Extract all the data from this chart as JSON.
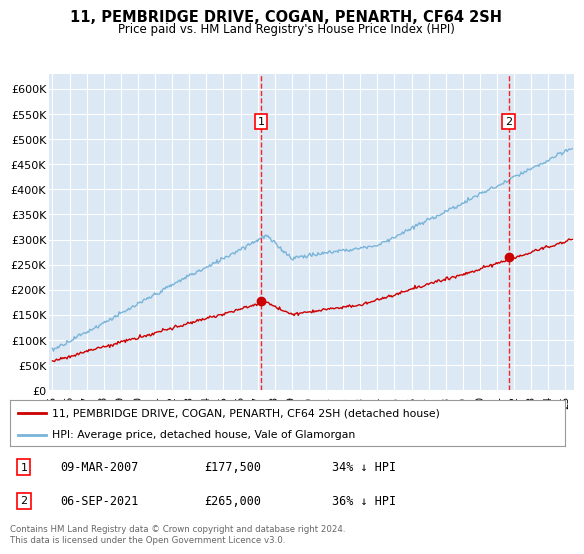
{
  "title": "11, PEMBRIDGE DRIVE, COGAN, PENARTH, CF64 2SH",
  "subtitle": "Price paid vs. HM Land Registry's House Price Index (HPI)",
  "yticks": [
    0,
    50000,
    100000,
    150000,
    200000,
    250000,
    300000,
    350000,
    400000,
    450000,
    500000,
    550000,
    600000
  ],
  "xlim_start": 1994.8,
  "xlim_end": 2025.5,
  "ylim_min": 0,
  "ylim_max": 630000,
  "plot_bg_color": "#dce9f5",
  "grid_color": "#ffffff",
  "line_color_hpi": "#7ab4d8",
  "line_color_price": "#cc0000",
  "purchase1_x": 2007.19,
  "purchase1_y": 177500,
  "purchase1_label": "1",
  "purchase1_date": "09-MAR-2007",
  "purchase1_price": "£177,500",
  "purchase1_hpi": "34% ↓ HPI",
  "purchase2_x": 2021.68,
  "purchase2_y": 265000,
  "purchase2_label": "2",
  "purchase2_date": "06-SEP-2021",
  "purchase2_price": "£265,000",
  "purchase2_hpi": "36% ↓ HPI",
  "legend_line1": "11, PEMBRIDGE DRIVE, COGAN, PENARTH, CF64 2SH (detached house)",
  "legend_line2": "HPI: Average price, detached house, Vale of Glamorgan",
  "footer": "Contains HM Land Registry data © Crown copyright and database right 2024.\nThis data is licensed under the Open Government Licence v3.0.",
  "xtick_years": [
    1995,
    1996,
    1997,
    1998,
    1999,
    2000,
    2001,
    2002,
    2003,
    2004,
    2005,
    2006,
    2007,
    2008,
    2009,
    2010,
    2011,
    2012,
    2013,
    2014,
    2015,
    2016,
    2017,
    2018,
    2019,
    2020,
    2021,
    2022,
    2023,
    2024,
    2025
  ]
}
